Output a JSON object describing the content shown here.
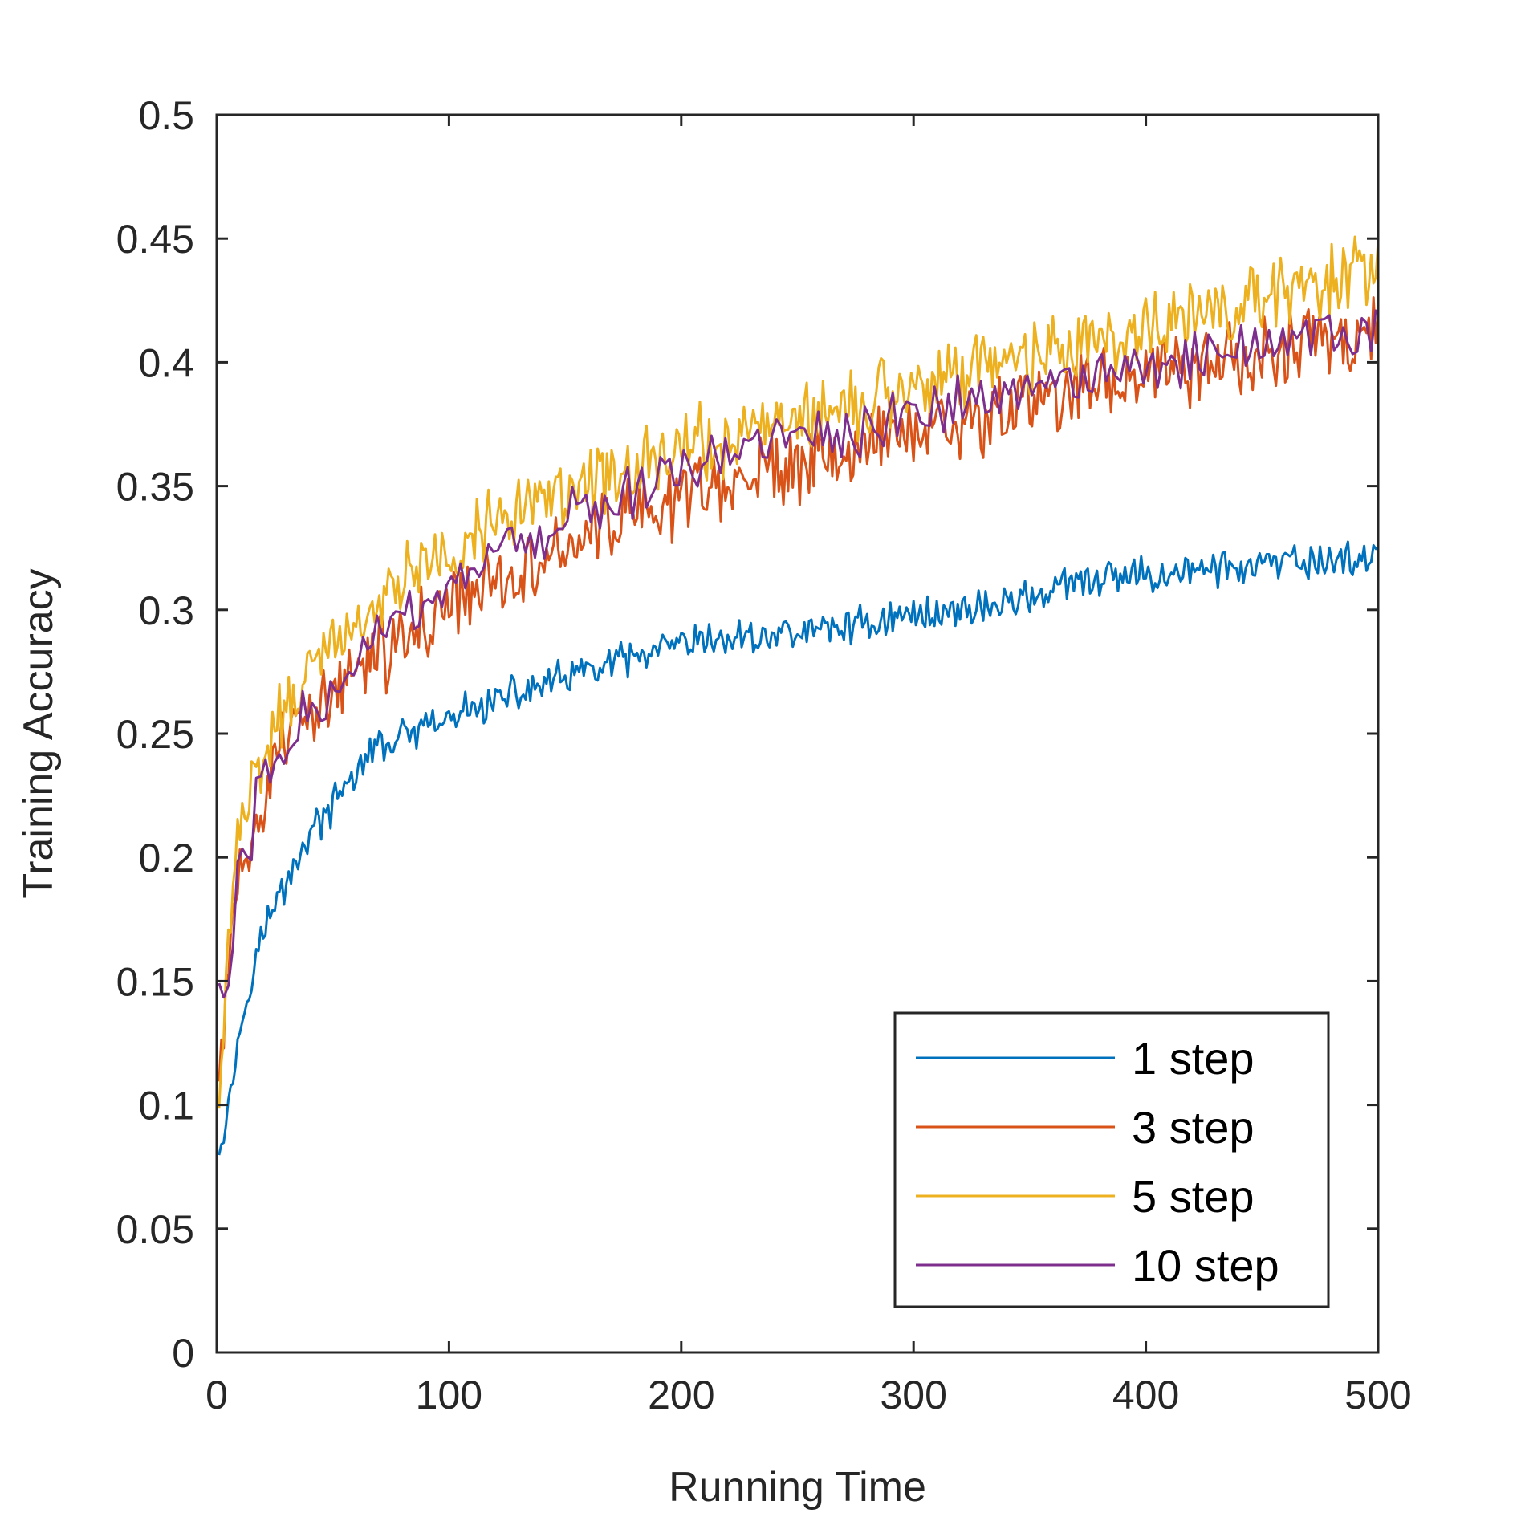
{
  "chart_data": {
    "type": "line",
    "title": "",
    "xlabel": "Running Time",
    "ylabel": "Training Accuracy",
    "xlim": [
      0,
      500
    ],
    "ylim": [
      0,
      0.5
    ],
    "xticks": [
      0,
      100,
      200,
      300,
      400,
      500
    ],
    "xtick_labels": [
      "0",
      "100",
      "200",
      "300",
      "400",
      "500"
    ],
    "yticks": [
      0,
      0.05,
      0.1,
      0.15,
      0.2,
      0.25,
      0.3,
      0.35,
      0.4,
      0.45,
      0.5
    ],
    "ytick_labels": [
      "0",
      "0.05",
      "0.1",
      "0.15",
      "0.2",
      "0.25",
      "0.3",
      "0.35",
      "0.4",
      "0.45",
      "0.5"
    ],
    "grid": false,
    "legend_position": "bottom-right",
    "series": [
      {
        "name": "1 step",
        "color": "#0072BD",
        "x": [
          1,
          5,
          10,
          15,
          20,
          25,
          30,
          40,
          50,
          60,
          70,
          80,
          90,
          100,
          110,
          120,
          130,
          140,
          150,
          160,
          170,
          180,
          190,
          200,
          220,
          240,
          260,
          280,
          300,
          320,
          340,
          360,
          380,
          400,
          420,
          440,
          460,
          480,
          500
        ],
        "y": [
          0.085,
          0.1,
          0.13,
          0.155,
          0.17,
          0.18,
          0.19,
          0.21,
          0.22,
          0.235,
          0.245,
          0.248,
          0.252,
          0.255,
          0.26,
          0.263,
          0.266,
          0.27,
          0.272,
          0.275,
          0.278,
          0.28,
          0.283,
          0.285,
          0.288,
          0.29,
          0.292,
          0.295,
          0.298,
          0.3,
          0.303,
          0.308,
          0.312,
          0.314,
          0.316,
          0.317,
          0.318,
          0.32,
          0.322
        ],
        "noise": 0.006
      },
      {
        "name": "3 step",
        "color": "#D95319",
        "x": [
          1,
          5,
          10,
          15,
          20,
          25,
          30,
          40,
          50,
          60,
          70,
          80,
          90,
          100,
          110,
          120,
          130,
          140,
          150,
          160,
          170,
          180,
          190,
          200,
          220,
          240,
          260,
          280,
          300,
          320,
          340,
          360,
          380,
          400,
          420,
          440,
          460,
          480,
          500
        ],
        "y": [
          0.1,
          0.16,
          0.19,
          0.21,
          0.22,
          0.235,
          0.245,
          0.255,
          0.265,
          0.275,
          0.282,
          0.288,
          0.295,
          0.302,
          0.308,
          0.312,
          0.318,
          0.322,
          0.326,
          0.33,
          0.334,
          0.338,
          0.342,
          0.345,
          0.352,
          0.357,
          0.362,
          0.367,
          0.372,
          0.377,
          0.381,
          0.386,
          0.39,
          0.394,
          0.398,
          0.402,
          0.406,
          0.41,
          0.413
        ],
        "noise": 0.012
      },
      {
        "name": "5 step",
        "color": "#EDB120",
        "x": [
          1,
          5,
          10,
          15,
          20,
          25,
          30,
          40,
          50,
          60,
          70,
          80,
          90,
          100,
          110,
          120,
          130,
          140,
          150,
          160,
          170,
          180,
          190,
          200,
          220,
          240,
          260,
          280,
          300,
          320,
          340,
          360,
          380,
          400,
          420,
          440,
          460,
          480,
          500
        ],
        "y": [
          0.105,
          0.17,
          0.215,
          0.23,
          0.24,
          0.25,
          0.26,
          0.275,
          0.285,
          0.295,
          0.302,
          0.31,
          0.318,
          0.324,
          0.33,
          0.335,
          0.34,
          0.344,
          0.348,
          0.352,
          0.355,
          0.358,
          0.361,
          0.364,
          0.37,
          0.375,
          0.38,
          0.385,
          0.39,
          0.395,
          0.4,
          0.405,
          0.41,
          0.414,
          0.418,
          0.422,
          0.428,
          0.432,
          0.438
        ],
        "noise": 0.012
      },
      {
        "name": "10 step",
        "color": "#7E2F8E",
        "x": [
          1,
          5,
          10,
          15,
          20,
          25,
          30,
          40,
          50,
          60,
          70,
          80,
          90,
          100,
          110,
          120,
          130,
          140,
          150,
          160,
          170,
          180,
          190,
          200,
          220,
          240,
          260,
          280,
          300,
          320,
          340,
          360,
          380,
          400,
          420,
          440,
          460,
          480,
          500
        ],
        "y": [
          0.148,
          0.15,
          0.2,
          0.21,
          0.232,
          0.242,
          0.25,
          0.26,
          0.27,
          0.28,
          0.29,
          0.295,
          0.3,
          0.307,
          0.313,
          0.318,
          0.324,
          0.33,
          0.335,
          0.34,
          0.344,
          0.348,
          0.352,
          0.356,
          0.362,
          0.366,
          0.371,
          0.375,
          0.379,
          0.383,
          0.387,
          0.391,
          0.395,
          0.398,
          0.401,
          0.404,
          0.407,
          0.41,
          0.412
        ],
        "noise": 0.009
      }
    ]
  }
}
